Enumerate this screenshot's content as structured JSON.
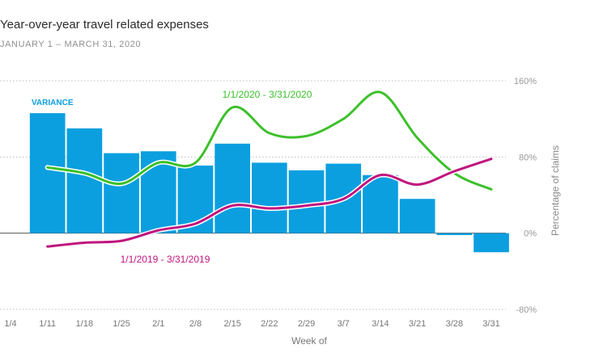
{
  "chart_data": {
    "type": "bar",
    "title": "Year-over-year travel related expenses",
    "subtitle": "JANUARY 1 – MARCH 31, 2020",
    "xlabel": "Week of",
    "ylabel": "Percentage of claims",
    "categories": [
      "1/4",
      "1/11",
      "1/18",
      "1/25",
      "2/1",
      "2/8",
      "2/15",
      "2/22",
      "2/29",
      "3/7",
      "3/14",
      "3/21",
      "3/28",
      "3/31"
    ],
    "yticks": [
      {
        "value": 160,
        "label": "160%"
      },
      {
        "value": 80,
        "label": "80%"
      },
      {
        "value": 0,
        "label": "0%"
      },
      {
        "value": -80,
        "label": "-80%"
      }
    ],
    "ylim": [
      -80,
      160
    ],
    "grid": true,
    "series": [
      {
        "name": "VARIANCE",
        "kind": "bar",
        "color": "#0b9fe0",
        "values": [
          null,
          126,
          110,
          84,
          86,
          71,
          94,
          74,
          66,
          73,
          61,
          36,
          -2,
          -20
        ]
      },
      {
        "name": "1/1/2020 - 3/31/2020",
        "kind": "line",
        "color": "#3cc02a",
        "values": [
          null,
          69,
          63,
          52,
          74,
          74,
          132,
          105,
          102,
          120,
          148,
          100,
          63,
          46
        ]
      },
      {
        "name": "1/1/2019 - 3/31/2019",
        "kind": "line",
        "color": "#c0157e",
        "values": [
          null,
          -14,
          -10,
          -8,
          3,
          10,
          29,
          26,
          29,
          36,
          61,
          51,
          65,
          78
        ]
      }
    ]
  }
}
